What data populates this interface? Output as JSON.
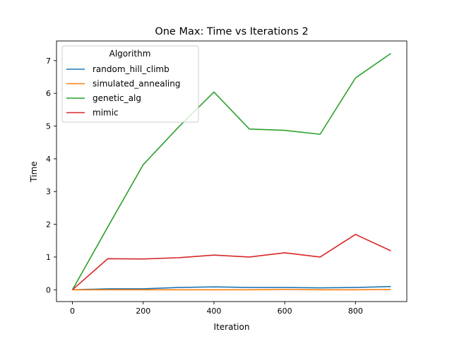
{
  "chart_data": {
    "type": "line",
    "title": "One Max: Time vs Iterations 2",
    "xlabel": "Iteration",
    "ylabel": "Time",
    "xlim": [
      -45,
      945
    ],
    "ylim": [
      -0.36,
      7.6
    ],
    "xticks": [
      0,
      200,
      400,
      600,
      800
    ],
    "yticks": [
      0,
      1,
      2,
      3,
      4,
      5,
      6,
      7
    ],
    "grid": false,
    "legend": {
      "title": "Algorithm",
      "position": "top-left"
    },
    "x": [
      0,
      100,
      200,
      300,
      400,
      500,
      600,
      700,
      800,
      900
    ],
    "series": [
      {
        "name": "random_hill_climb",
        "color": "#1f77b4",
        "values": [
          0.0,
          0.03,
          0.03,
          0.07,
          0.09,
          0.07,
          0.07,
          0.06,
          0.07,
          0.1
        ]
      },
      {
        "name": "simulated_annealing",
        "color": "#ff7f0e",
        "values": [
          0.0,
          0.0,
          0.0,
          0.0,
          0.0,
          0.0,
          0.01,
          0.0,
          0.0,
          0.01
        ]
      },
      {
        "name": "genetic_alg",
        "color": "#2ca02c",
        "values": [
          0.0,
          1.92,
          3.82,
          4.97,
          6.04,
          4.91,
          4.87,
          4.75,
          6.47,
          7.22
        ]
      },
      {
        "name": "mimic",
        "color": "#d62728",
        "values": [
          0.0,
          0.95,
          0.94,
          0.98,
          1.06,
          1.0,
          1.13,
          1.0,
          1.69,
          1.19
        ]
      }
    ]
  }
}
